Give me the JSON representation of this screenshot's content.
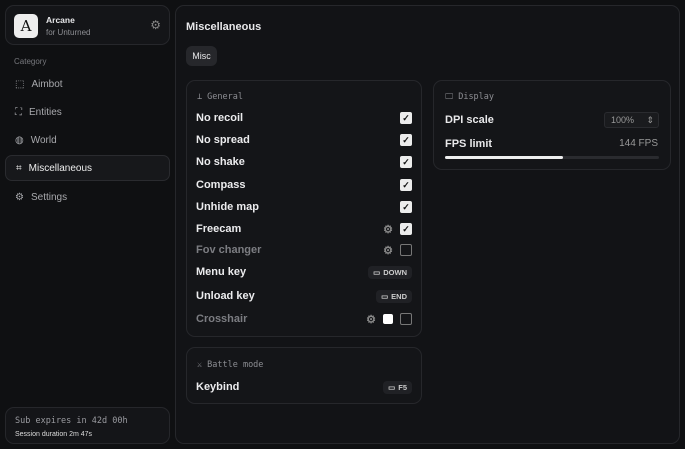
{
  "brand": {
    "initial": "A",
    "name": "Arcane",
    "subtitle": "for Unturned"
  },
  "sidebar": {
    "category_label": "Category",
    "items": [
      {
        "label": "Aimbot",
        "icon": "crosshair-icon",
        "glyph": "⬚"
      },
      {
        "label": "Entities",
        "icon": "entities-icon",
        "glyph": "⛶"
      },
      {
        "label": "World",
        "icon": "globe-icon",
        "glyph": "◍"
      },
      {
        "label": "Miscellaneous",
        "icon": "grid-icon",
        "glyph": "⌗",
        "active": true
      },
      {
        "label": "Settings",
        "icon": "gear-icon",
        "glyph": "⚙"
      }
    ]
  },
  "footer": {
    "sub": "Sub expires in 42d 00h",
    "session": "Session duration 2m 47s"
  },
  "main": {
    "title": "Miscellaneous",
    "tab": "Misc"
  },
  "general": {
    "title": "General",
    "rows": [
      {
        "label": "No recoil",
        "checked": true
      },
      {
        "label": "No spread",
        "checked": true
      },
      {
        "label": "No shake",
        "checked": true
      },
      {
        "label": "Compass",
        "checked": true
      },
      {
        "label": "Unhide map",
        "checked": true
      },
      {
        "label": "Freecam",
        "checked": true,
        "gear": true
      },
      {
        "label": "Fov changer",
        "checked": false,
        "gear": true,
        "dim": true
      },
      {
        "label": "Menu key",
        "key": "DOWN"
      },
      {
        "label": "Unload key",
        "key": "END"
      },
      {
        "label": "Crosshair",
        "checked": false,
        "gear": true,
        "dim": true,
        "color": "#ffffff"
      }
    ]
  },
  "display": {
    "title": "Display",
    "dpi_label": "DPI scale",
    "dpi_value": "100%",
    "fps_label": "FPS limit",
    "fps_value": "144 FPS",
    "fps_fill_percent": 55
  },
  "battle": {
    "title": "Battle mode",
    "keybind_label": "Keybind",
    "keybind_value": "F5"
  },
  "colors": {
    "bg": "#0f1012",
    "card": "#141518",
    "accent": "#ececec"
  }
}
